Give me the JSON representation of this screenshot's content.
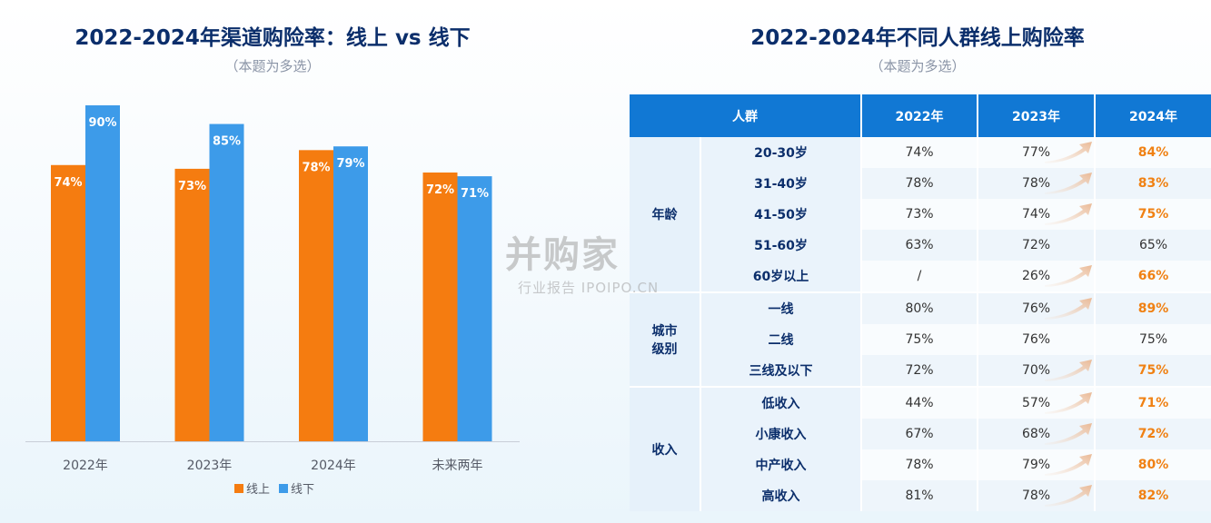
{
  "left": {
    "title": "2022-2024年渠道购险率：线上 vs 线下",
    "subtitle": "（本题为多选）"
  },
  "right": {
    "title": "2022-2024年不同人群线上购险率",
    "subtitle": "（本题为多选）"
  },
  "chart_data": [
    {
      "type": "bar",
      "categories": [
        "2022年",
        "2023年",
        "2024年",
        "未来两年"
      ],
      "series": [
        {
          "name": "线上",
          "values": [
            74,
            73,
            78,
            72
          ],
          "labels": [
            "74%",
            "73%",
            "78%",
            "72%"
          ],
          "color": "#f57c10"
        },
        {
          "name": "线下",
          "values": [
            90,
            85,
            79,
            71
          ],
          "labels": [
            "90%",
            "85%",
            "79%",
            "71%"
          ],
          "color": "#3d9be9"
        }
      ],
      "ylim": [
        0,
        90
      ],
      "grid": false,
      "legend_position": "bottom"
    },
    {
      "type": "table",
      "headers": [
        "人群",
        "2022年",
        "2023年",
        "2024年"
      ],
      "groups": [
        {
          "name": "年龄",
          "rows": [
            {
              "label": "20-30岁",
              "v2022": "74%",
              "v2023": "77%",
              "v2024": "84%",
              "up": true
            },
            {
              "label": "31-40岁",
              "v2022": "78%",
              "v2023": "78%",
              "v2024": "83%",
              "up": true
            },
            {
              "label": "41-50岁",
              "v2022": "73%",
              "v2023": "74%",
              "v2024": "75%",
              "up": true
            },
            {
              "label": "51-60岁",
              "v2022": "63%",
              "v2023": "72%",
              "v2024": "65%",
              "up": false
            },
            {
              "label": "60岁以上",
              "v2022": "/",
              "v2023": "26%",
              "v2024": "66%",
              "up": true
            }
          ]
        },
        {
          "name": "城市\n级别",
          "rows": [
            {
              "label": "一线",
              "v2022": "80%",
              "v2023": "76%",
              "v2024": "89%",
              "up": true
            },
            {
              "label": "二线",
              "v2022": "75%",
              "v2023": "76%",
              "v2024": "75%",
              "up": false
            },
            {
              "label": "三线及以下",
              "v2022": "72%",
              "v2023": "70%",
              "v2024": "75%",
              "up": true
            }
          ]
        },
        {
          "name": "收入",
          "rows": [
            {
              "label": "低收入",
              "v2022": "44%",
              "v2023": "57%",
              "v2024": "71%",
              "up": true
            },
            {
              "label": "小康收入",
              "v2022": "67%",
              "v2023": "68%",
              "v2024": "72%",
              "up": true
            },
            {
              "label": "中产收入",
              "v2022": "78%",
              "v2023": "79%",
              "v2024": "80%",
              "up": true
            },
            {
              "label": "高收入",
              "v2022": "81%",
              "v2023": "78%",
              "v2024": "82%",
              "up": true
            }
          ]
        }
      ],
      "highlight_color": "#f08113"
    }
  ],
  "watermark": {
    "brand": "并购家",
    "tagline": "行业报告 IPOIPO.CN"
  }
}
